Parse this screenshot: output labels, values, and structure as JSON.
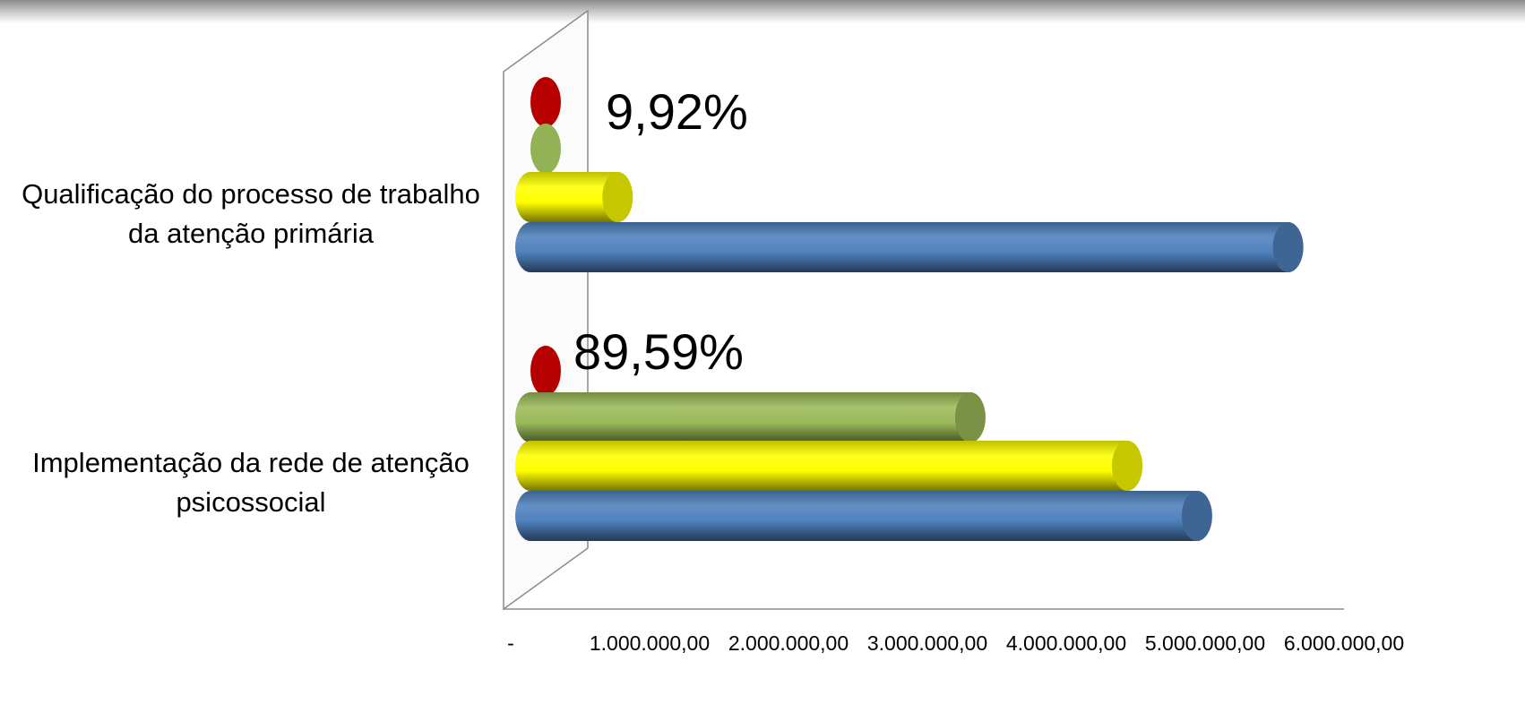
{
  "chart_data": {
    "type": "bar",
    "orientation": "horizontal",
    "style": "3d-cylinder",
    "categories": [
      [
        "Qualificação do processo de trabalho",
        "da atenção primária"
      ],
      [
        "Implementação da rede de atenção",
        "psicossocial"
      ]
    ],
    "series": [
      {
        "color": "#c00000",
        "values": [
          0,
          0
        ]
      },
      {
        "color": "#9bbb59",
        "values": [
          0,
          3280000
        ]
      },
      {
        "color": "#ffff00",
        "values": [
          650000,
          4450000
        ]
      },
      {
        "color": "#4f81bd",
        "values": [
          5650000,
          4970000
        ]
      }
    ],
    "data_labels": [
      "9,92%",
      "89,59%"
    ],
    "x_ticks": [
      "-",
      "1.000.000,00",
      "2.000.000,00",
      "3.000.000,00",
      "4.000.000,00",
      "5.000.000,00",
      "6.000.000,00"
    ],
    "xlim": [
      0,
      6000000
    ],
    "legend": "none"
  }
}
